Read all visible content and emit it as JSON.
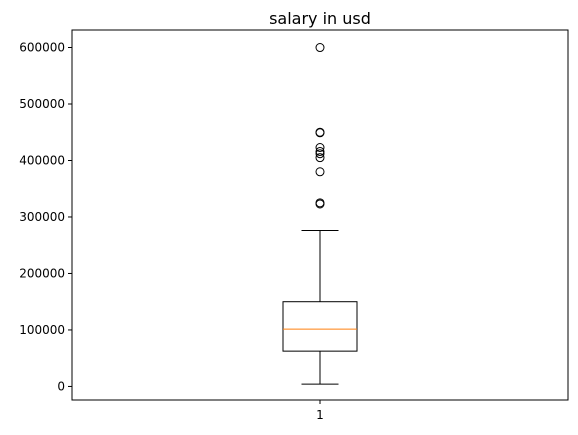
{
  "chart_data": {
    "type": "box",
    "title": "salary in usd",
    "xlabel": "",
    "ylabel": "",
    "categories": [
      "1"
    ],
    "ylim": [
      -24000,
      631000
    ],
    "yticks": [
      0,
      100000,
      200000,
      300000,
      400000,
      500000,
      600000
    ],
    "ytick_labels": [
      "0",
      "100000",
      "200000",
      "300000",
      "400000",
      "500000",
      "600000"
    ],
    "grid": false,
    "box": {
      "whisker_low": 4000,
      "q1": 62500,
      "median": 101500,
      "q3": 150000,
      "whisker_high": 276000,
      "outliers": [
        600000,
        450000,
        449000,
        423000,
        416000,
        412000,
        405000,
        380000,
        325000,
        323000
      ]
    },
    "colors": {
      "box": "#000000",
      "median": "#ff7f0e",
      "outlier_edge": "#000000"
    }
  }
}
